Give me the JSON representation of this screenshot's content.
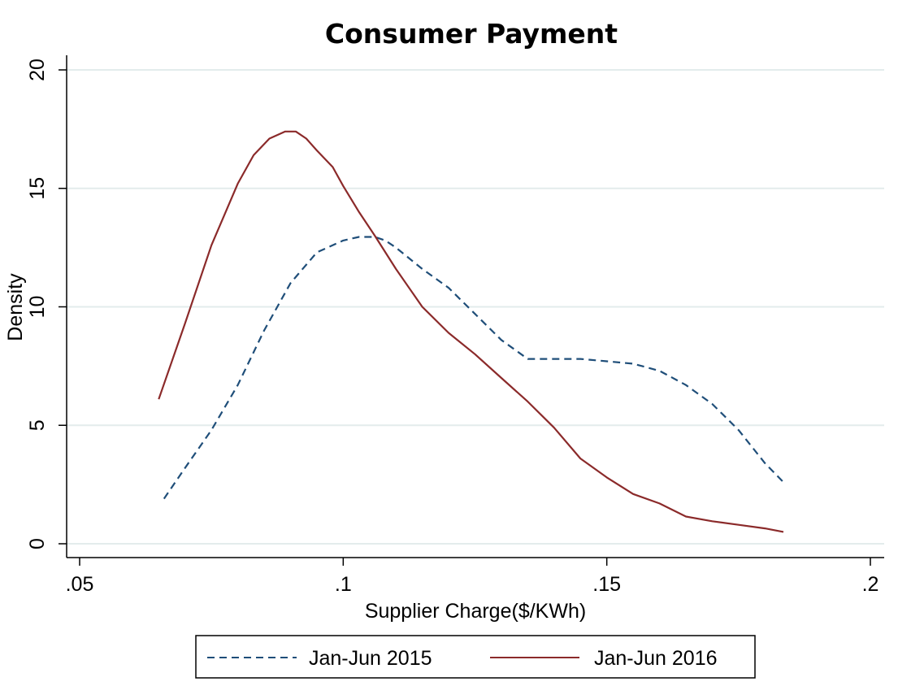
{
  "chart_data": {
    "type": "line",
    "title": "Consumer Payment",
    "xlabel": "Supplier Charge($/KWh)",
    "ylabel": "Density",
    "xlim": [
      0.05,
      0.2
    ],
    "ylim": [
      0,
      20
    ],
    "xticks": [
      0.05,
      0.1,
      0.15,
      0.2
    ],
    "xtick_labels": [
      ".05",
      ".1",
      ".15",
      ".2"
    ],
    "yticks": [
      0,
      5,
      10,
      15,
      20
    ],
    "ytick_labels": [
      "0",
      "5",
      "10",
      "15",
      "20"
    ],
    "grid": true,
    "legend_position": "bottom",
    "series": [
      {
        "name": "Jan-Jun 2015",
        "color": "#1f4e79",
        "style": "dashed",
        "x": [
          0.066,
          0.07,
          0.075,
          0.08,
          0.085,
          0.09,
          0.095,
          0.1,
          0.103,
          0.106,
          0.108,
          0.11,
          0.115,
          0.12,
          0.125,
          0.13,
          0.135,
          0.14,
          0.145,
          0.15,
          0.155,
          0.16,
          0.165,
          0.17,
          0.175,
          0.18,
          0.1835
        ],
        "y": [
          1.9,
          3.2,
          4.8,
          6.7,
          9.0,
          11.0,
          12.3,
          12.8,
          12.95,
          12.95,
          12.8,
          12.5,
          11.6,
          10.8,
          9.7,
          8.6,
          7.8,
          7.8,
          7.8,
          7.7,
          7.6,
          7.3,
          6.7,
          5.9,
          4.8,
          3.4,
          2.6
        ]
      },
      {
        "name": "Jan-Jun 2016",
        "color": "#8b2a2a",
        "style": "solid",
        "x": [
          0.065,
          0.07,
          0.075,
          0.08,
          0.083,
          0.086,
          0.089,
          0.091,
          0.093,
          0.095,
          0.098,
          0.1,
          0.103,
          0.106,
          0.11,
          0.115,
          0.12,
          0.125,
          0.13,
          0.135,
          0.14,
          0.145,
          0.15,
          0.155,
          0.16,
          0.165,
          0.17,
          0.175,
          0.18,
          0.1835
        ],
        "y": [
          6.1,
          9.3,
          12.6,
          15.2,
          16.4,
          17.1,
          17.4,
          17.4,
          17.1,
          16.6,
          15.9,
          15.1,
          14.0,
          13.0,
          11.6,
          10.0,
          8.9,
          8.0,
          7.0,
          6.0,
          4.9,
          3.6,
          2.8,
          2.1,
          1.7,
          1.15,
          0.95,
          0.8,
          0.65,
          0.5
        ]
      }
    ]
  }
}
